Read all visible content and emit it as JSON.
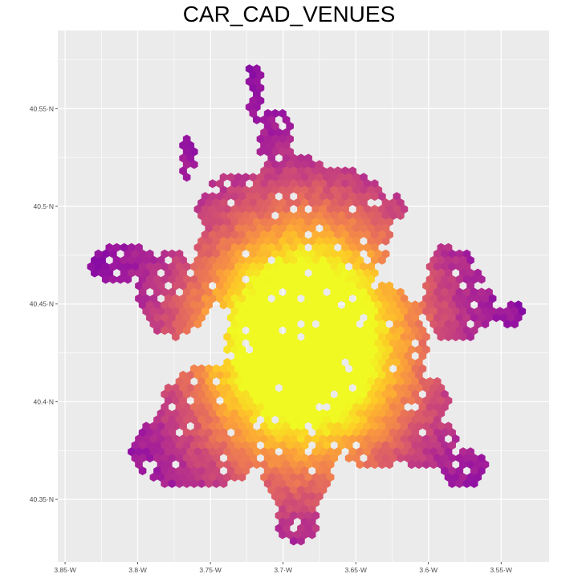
{
  "title": "CAR_CAD_VENUES",
  "map": {
    "panel_background": "#ebebeb",
    "grid_color": "#ffffff",
    "x_ticks": [
      {
        "value": -3.85,
        "label": "3.85·W"
      },
      {
        "value": -3.8,
        "label": "3.8·W"
      },
      {
        "value": -3.75,
        "label": "3.75·W"
      },
      {
        "value": -3.7,
        "label": "3.7·W"
      },
      {
        "value": -3.65,
        "label": "3.65·W"
      },
      {
        "value": -3.6,
        "label": "3.6·W"
      },
      {
        "value": -3.55,
        "label": "3.55·W"
      }
    ],
    "y_ticks": [
      {
        "value": 40.35,
        "label": "40.35·N"
      },
      {
        "value": 40.4,
        "label": "40.4·N"
      },
      {
        "value": 40.45,
        "label": "40.45·N"
      },
      {
        "value": 40.5,
        "label": "40.5·N"
      },
      {
        "value": 40.55,
        "label": "40.55·N"
      }
    ],
    "xlim": [
      -3.855,
      -3.517
    ],
    "ylim": [
      40.318,
      40.59
    ],
    "colormap": "plasma",
    "legend": "none",
    "density_centre": [
      -3.685,
      40.43
    ]
  }
}
